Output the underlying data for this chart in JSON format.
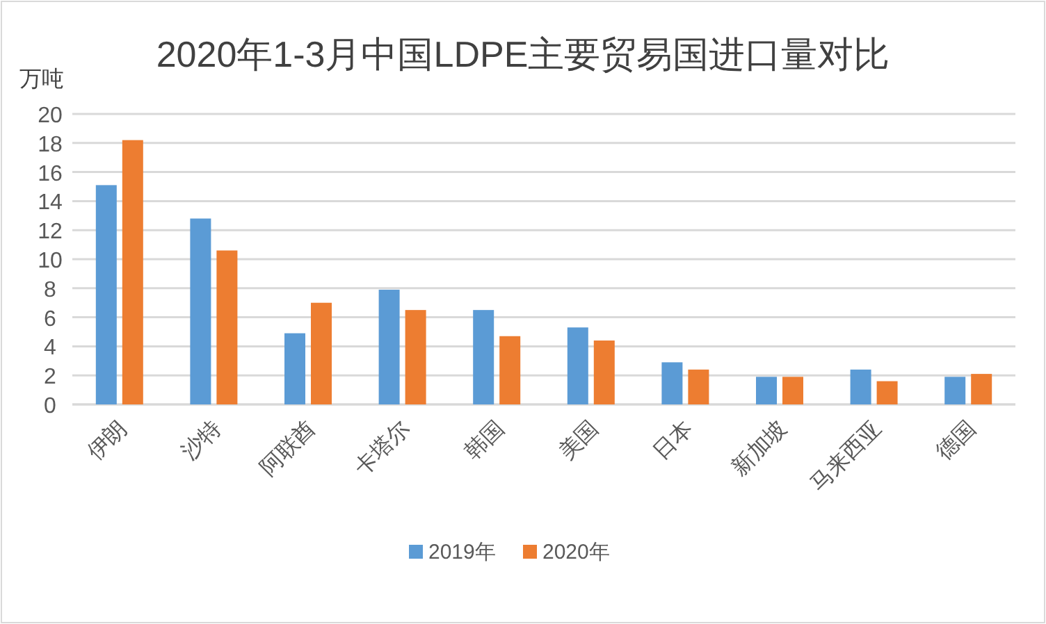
{
  "chart_data": {
    "type": "bar",
    "title": "2020年1-3月中国LDPE主要贸易国进口量对比",
    "ylabel": "万吨",
    "categories": [
      "伊朗",
      "沙特",
      "阿联酋",
      "卡塔尔",
      "韩国",
      "美国",
      "日本",
      "新加坡",
      "马来西亚",
      "德国"
    ],
    "series": [
      {
        "name": "2019年",
        "color": "#5b9bd5",
        "values": [
          15.1,
          12.8,
          4.9,
          7.9,
          6.5,
          5.3,
          2.9,
          1.9,
          2.4,
          1.9
        ]
      },
      {
        "name": "2020年",
        "color": "#ed7d31",
        "values": [
          18.2,
          10.6,
          7.0,
          6.5,
          4.7,
          4.4,
          2.4,
          1.9,
          1.6,
          2.1
        ]
      }
    ],
    "ylim": [
      0,
      20
    ],
    "yticks": [
      0,
      2,
      4,
      6,
      8,
      10,
      12,
      14,
      16,
      18,
      20
    ],
    "grid": "y",
    "legend": "bottom"
  }
}
